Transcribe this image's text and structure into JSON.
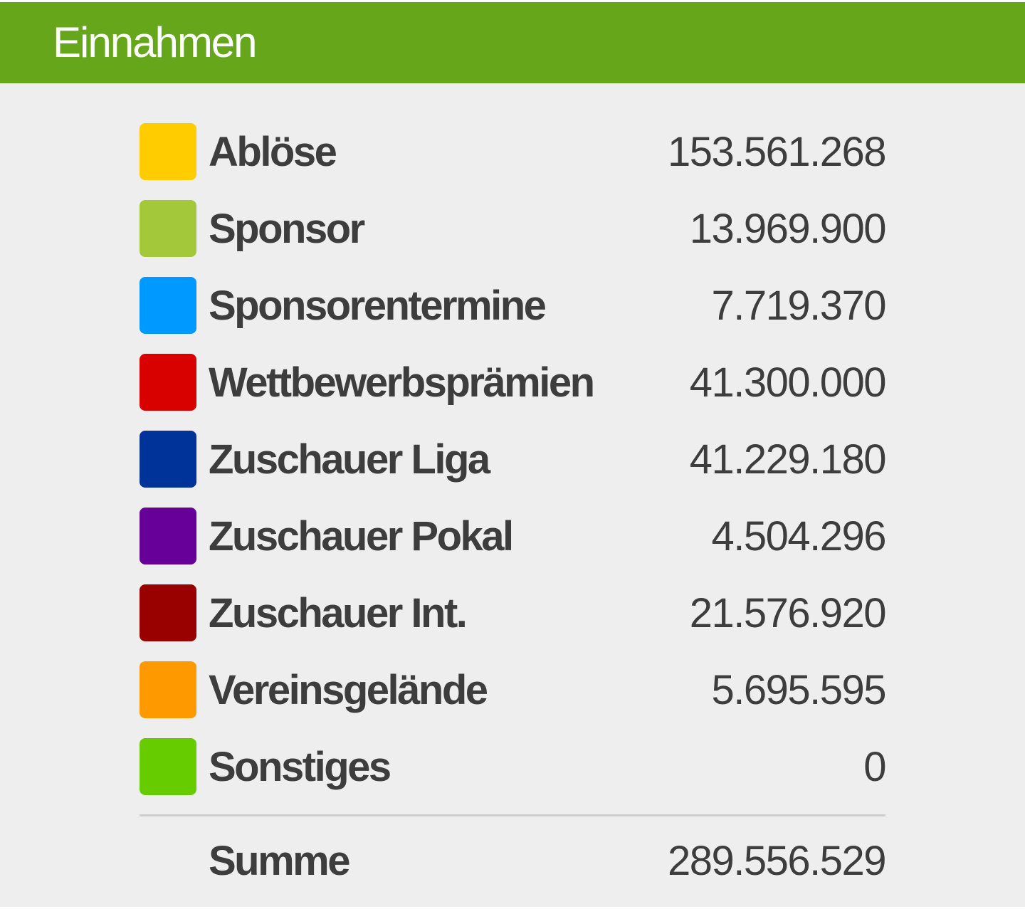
{
  "header": {
    "title": "Einnahmen",
    "color": "#66a61a"
  },
  "rows": [
    {
      "label": "Ablöse",
      "value": "153.561.268",
      "color": "#ffcc00"
    },
    {
      "label": "Sponsor",
      "value": "13.969.900",
      "color": "#a3c83a"
    },
    {
      "label": "Sponsorentermine",
      "value": "7.719.370",
      "color": "#0099ff"
    },
    {
      "label": "Wettbewerbsprämien",
      "value": "41.300.000",
      "color": "#d90000"
    },
    {
      "label": "Zuschauer Liga",
      "value": "41.229.180",
      "color": "#003399"
    },
    {
      "label": "Zuschauer Pokal",
      "value": "4.504.296",
      "color": "#660099"
    },
    {
      "label": "Zuschauer Int.",
      "value": "21.576.920",
      "color": "#990000"
    },
    {
      "label": "Vereinsgelände",
      "value": "5.695.595",
      "color": "#ff9900"
    },
    {
      "label": "Sonstiges",
      "value": "0",
      "color": "#66cc00"
    }
  ],
  "total": {
    "label": "Summe",
    "value": "289.556.529"
  }
}
